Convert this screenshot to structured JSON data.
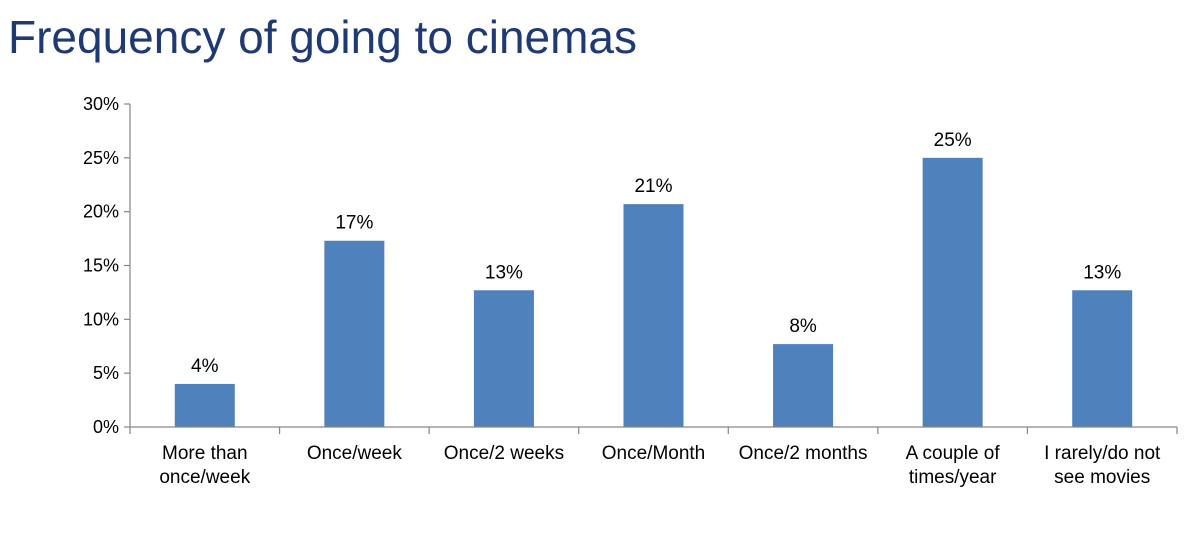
{
  "title": "Frequency of going to cinemas",
  "colors": {
    "title": "#1f3a73",
    "bar": "#4f81bd",
    "axis": "#868686"
  },
  "chart_data": {
    "type": "bar",
    "title": "Frequency of going to cinemas",
    "xlabel": "",
    "ylabel": "",
    "ylim": [
      0,
      30
    ],
    "yticks": [
      "0%",
      "5%",
      "10%",
      "15%",
      "20%",
      "25%",
      "30%"
    ],
    "grid": false,
    "legend": "none",
    "categories": [
      [
        "More than",
        "once/week"
      ],
      [
        "Once/week"
      ],
      [
        "Once/2 weeks"
      ],
      [
        "Once/Month"
      ],
      [
        "Once/2 months"
      ],
      [
        "A couple of",
        "times/year"
      ],
      [
        "I rarely/do not",
        "see movies"
      ]
    ],
    "values": [
      4,
      17.3,
      12.7,
      20.7,
      7.7,
      25,
      12.7
    ],
    "data_labels": [
      "4%",
      "17%",
      "13%",
      "21%",
      "8%",
      "25%",
      "13%"
    ]
  }
}
